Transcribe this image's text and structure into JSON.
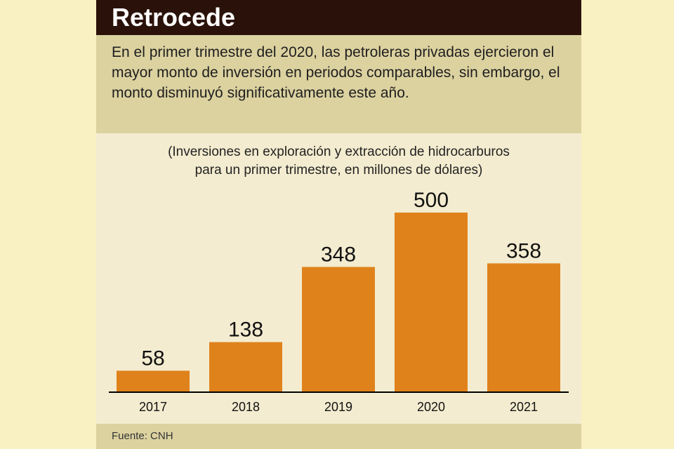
{
  "header": {
    "title": "Retrocede",
    "intro": "En el primer trimestre del 2020, las petroleras privadas ejercieron el mayor monto de inversión en periodos comparables, sin embargo, el monto disminuyó significativamente este año."
  },
  "chart_data": {
    "type": "bar",
    "title": "(Inversiones en exploración y extracción de hidrocarburos para un primer trimestre, en millones de dólares)",
    "title_lines": [
      "(Inversiones en exploración y extracción de hidrocarburos",
      "para un primer trimestre, en millones de dólares)"
    ],
    "categories": [
      "2017",
      "2018",
      "2019",
      "2020",
      "2021"
    ],
    "values": [
      58,
      138,
      348,
      500,
      358
    ],
    "xlabel": "",
    "ylabel": "",
    "ylim": [
      0,
      500
    ],
    "grid": false,
    "bar_color": "#e0821c",
    "axis_color": "#000000"
  },
  "footer": {
    "source": "Fuente: CNH"
  }
}
